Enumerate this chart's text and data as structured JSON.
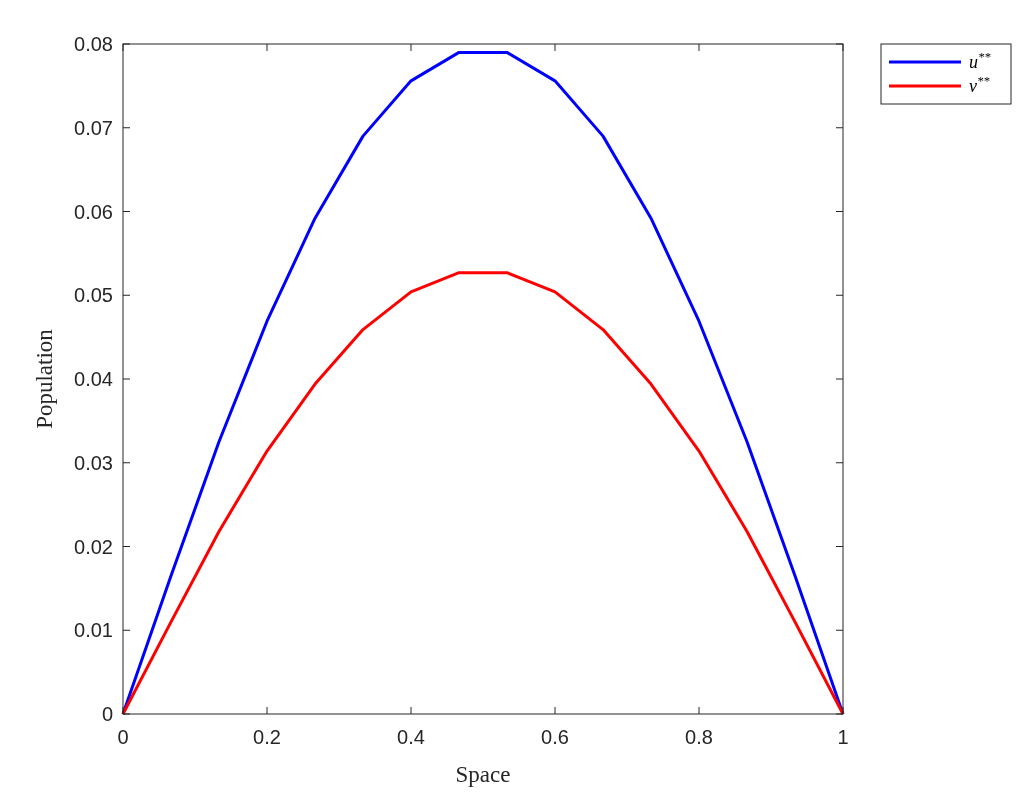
{
  "chart_data": {
    "type": "line",
    "xlabel": "Space",
    "ylabel": "Population",
    "x": [
      0,
      0.0667,
      0.1333,
      0.2,
      0.2667,
      0.3333,
      0.4,
      0.4667,
      0.5333,
      0.6,
      0.6667,
      0.7333,
      0.8,
      0.8667,
      0.9333,
      1
    ],
    "series": [
      {
        "name": "u$^{**}$",
        "color": "#0000ff",
        "values": [
          0,
          0.0165,
          0.0325,
          0.0469,
          0.0592,
          0.069,
          0.0756,
          0.079,
          0.079,
          0.0756,
          0.069,
          0.0592,
          0.0469,
          0.0325,
          0.0165,
          0
        ]
      },
      {
        "name": "v$^{**}$",
        "color": "#ff0000",
        "values": [
          0,
          0.011,
          0.0218,
          0.0314,
          0.0394,
          0.0459,
          0.0504,
          0.0527,
          0.0527,
          0.0504,
          0.0459,
          0.0394,
          0.0314,
          0.0218,
          0.011,
          0
        ]
      }
    ],
    "xlim": [
      0,
      1
    ],
    "xticks": [
      0,
      0.2,
      0.4,
      0.6,
      0.8,
      1
    ],
    "ylim": [
      0,
      0.08
    ],
    "yticks": [
      0,
      0.01,
      0.02,
      0.03,
      0.04,
      0.05,
      0.06,
      0.07,
      0.08
    ],
    "grid": false,
    "legend": "top right",
    "marker": "none",
    "line_style": "solid"
  }
}
